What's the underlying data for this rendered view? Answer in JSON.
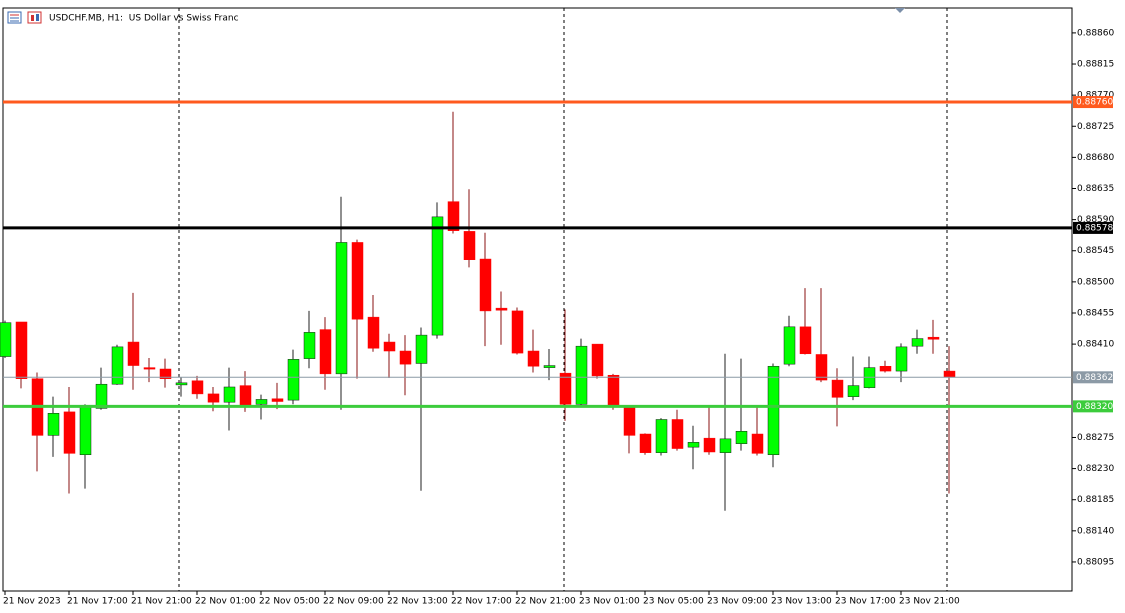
{
  "chart_data": {
    "type": "candlestick",
    "title": "USDCHF.MB, H1:  US Dollar vs Swiss Franc",
    "categories": [
      "21 Nov 2023",
      null,
      null,
      null,
      "21 Nov 17:00",
      null,
      null,
      null,
      "21 Nov 21:00",
      null,
      null,
      null,
      "22 Nov 01:00",
      null,
      null,
      null,
      "22 Nov 05:00",
      null,
      null,
      null,
      "22 Nov 09:00",
      null,
      null,
      null,
      "22 Nov 13:00",
      null,
      null,
      null,
      "22 Nov 17:00",
      null,
      null,
      null,
      "22 Nov 21:00",
      null,
      null,
      null,
      "23 Nov 01:00",
      null,
      null,
      null,
      "23 Nov 05:00",
      null,
      null,
      null,
      "23 Nov 09:00",
      null,
      null,
      null,
      "23 Nov 13:00",
      null,
      null,
      null,
      "23 Nov 17:00",
      null,
      null,
      null,
      "23 Nov 21:00",
      null,
      null,
      null
    ],
    "open": [
      0.88392,
      0.88442,
      0.8836,
      0.88278,
      0.88312,
      0.8825,
      0.88317,
      0.88352,
      0.88413,
      0.88376,
      0.88374,
      0.88351,
      0.88357,
      0.88338,
      0.88326,
      0.8835,
      0.88323,
      0.88331,
      0.88329,
      0.88389,
      0.88431,
      0.88367,
      0.88557,
      0.88449,
      0.88413,
      0.884,
      0.88382,
      0.88423,
      0.88616,
      0.88573,
      0.88533,
      0.88462,
      0.88458,
      0.884,
      0.88376,
      0.88368,
      0.88323,
      0.8841,
      0.88365,
      0.8832,
      0.8828,
      0.88253,
      0.88301,
      0.88261,
      0.88274,
      0.88253,
      0.88266,
      0.8828,
      0.8825,
      0.88381,
      0.88435,
      0.88395,
      0.88358,
      0.88334,
      0.88347,
      0.88378,
      0.88371,
      0.88407,
      0.8842,
      0.88371
    ],
    "high": [
      0.88444,
      0.88442,
      0.88369,
      0.88334,
      0.88348,
      0.88323,
      0.88376,
      0.88409,
      0.88484,
      0.8839,
      0.88389,
      0.88362,
      0.88364,
      0.88348,
      0.88376,
      0.88371,
      0.88337,
      0.88354,
      0.88402,
      0.88458,
      0.88449,
      0.88623,
      0.88561,
      0.88481,
      0.88425,
      0.88423,
      0.88434,
      0.88615,
      0.88746,
      0.88634,
      0.88571,
      0.88486,
      0.88463,
      0.88431,
      0.88403,
      0.8846,
      0.88418,
      0.8841,
      0.88367,
      0.88322,
      0.88281,
      0.88303,
      0.88315,
      0.88292,
      0.88319,
      0.88396,
      0.88389,
      0.8832,
      0.88382,
      0.88451,
      0.88491,
      0.88491,
      0.88375,
      0.88392,
      0.88392,
      0.88386,
      0.88411,
      0.88431,
      0.88445,
      0.88407
    ],
    "low": [
      0.8839,
      0.88346,
      0.88226,
      0.88247,
      0.88194,
      0.88201,
      0.88315,
      0.88351,
      0.88344,
      0.88355,
      0.88347,
      0.88334,
      0.88331,
      0.88313,
      0.88285,
      0.88312,
      0.88301,
      0.88316,
      0.88323,
      0.88375,
      0.88344,
      0.88315,
      0.8836,
      0.88399,
      0.88361,
      0.88336,
      0.88198,
      0.88418,
      0.8857,
      0.88521,
      0.88407,
      0.88409,
      0.88395,
      0.88369,
      0.88358,
      0.88299,
      0.88322,
      0.8836,
      0.88315,
      0.88252,
      0.8825,
      0.88249,
      0.88256,
      0.88229,
      0.8825,
      0.88169,
      0.88256,
      0.88249,
      0.88232,
      0.88378,
      0.88395,
      0.88355,
      0.88291,
      0.88329,
      0.88346,
      0.88369,
      0.88355,
      0.88396,
      0.88396,
      0.88194
    ],
    "close": [
      0.88441,
      0.8836,
      0.88278,
      0.8831,
      0.88252,
      0.8832,
      0.88352,
      0.88406,
      0.88379,
      0.88374,
      0.8836,
      0.88354,
      0.88338,
      0.88326,
      0.88348,
      0.88319,
      0.8833,
      0.88327,
      0.88388,
      0.88427,
      0.88367,
      0.88557,
      0.88446,
      0.88404,
      0.884,
      0.88381,
      0.88423,
      0.88594,
      0.88574,
      0.88532,
      0.88458,
      0.88459,
      0.88397,
      0.88378,
      0.88379,
      0.88323,
      0.88407,
      0.88364,
      0.88319,
      0.88278,
      0.88253,
      0.88301,
      0.88259,
      0.88268,
      0.88254,
      0.88273,
      0.88284,
      0.88252,
      0.88378,
      0.88435,
      0.88396,
      0.88358,
      0.88333,
      0.8835,
      0.88376,
      0.88371,
      0.88406,
      0.88418,
      0.88417,
      0.88362
    ],
    "up_color": "#00ff00",
    "down_color": "#ff0000",
    "ylim": [
      0.88053,
      0.88896
    ],
    "yticks": [
      {
        "value": 0.8886,
        "label": "0.88860"
      },
      0.88815,
      {
        "value": 0.8877,
        "label": "0.88770"
      },
      0.88725,
      {
        "value": 0.8868,
        "label": "0.88680"
      },
      0.88635,
      {
        "value": 0.8859,
        "label": "0.88590"
      },
      0.88545,
      {
        "value": 0.885,
        "label": "0.88500"
      },
      0.88455,
      {
        "value": 0.8841,
        "label": "0.88410"
      },
      0.88275,
      {
        "value": 0.8823,
        "label": "0.88230"
      },
      0.88185,
      {
        "value": 0.8814,
        "label": "0.88140"
      },
      0.88095
    ],
    "hlines": [
      {
        "value": 0.8876,
        "label": "0.88760",
        "color": "#ff5a1e"
      },
      {
        "value": 0.88578,
        "color": "#000000"
      },
      {
        "value": 0.88362,
        "color": "#8c9aa6"
      },
      {
        "value": 0.8832,
        "label": "0.88320",
        "color": "#3ccc3c"
      }
    ],
    "grid": false
  }
}
